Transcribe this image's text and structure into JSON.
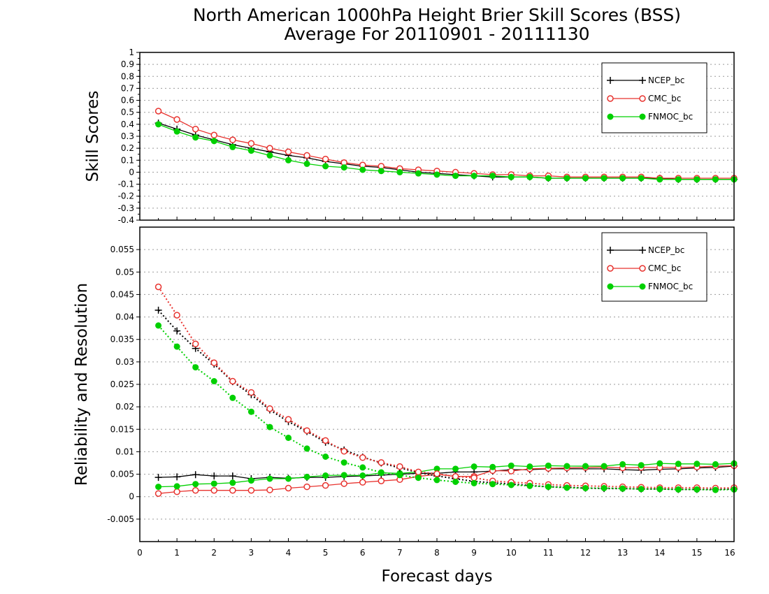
{
  "title_lines": [
    "North American 1000hPa Height Brier Skill Scores (BSS)",
    "Average For 20110901 - 20111130"
  ],
  "colors": {
    "NCEP_bc": "#000000",
    "CMC_bc": "#e8332f",
    "FNMOC_bc": "#00d000",
    "grid": "#9a9a9a",
    "axis": "#000000"
  },
  "x_axis": {
    "label": "Forecast days",
    "ticks": [
      "0",
      "1",
      "2",
      "3",
      "4",
      "5",
      "6",
      "7",
      "8",
      "9",
      "10",
      "11",
      "12",
      "13",
      "14",
      "15",
      "16"
    ]
  },
  "chart_data": [
    {
      "type": "line",
      "ylabel": "Skill Scores",
      "xlim": [
        0,
        16
      ],
      "ylim": [
        -0.4,
        1
      ],
      "grid": true,
      "legend_position": "top-right",
      "y_ticks": [
        "1",
        "0.9",
        "0.8",
        "0.7",
        "0.6",
        "0.5",
        "0.4",
        "0.3",
        "0.2",
        "0.1",
        "0",
        "-0.1",
        "-0.2",
        "-0.3",
        "-0.4"
      ],
      "x": [
        0.5,
        1,
        1.5,
        2,
        2.5,
        3,
        3.5,
        4,
        4.5,
        5,
        5.5,
        6,
        6.5,
        7,
        7.5,
        8,
        8.5,
        9,
        9.5,
        10,
        10.5,
        11,
        11.5,
        12,
        12.5,
        13,
        13.5,
        14,
        14.5,
        15,
        15.5,
        16
      ],
      "series": [
        {
          "name": "NCEP_bc",
          "marker": "plus",
          "line": "solid",
          "values": [
            0.41,
            0.36,
            0.31,
            0.27,
            0.23,
            0.2,
            0.17,
            0.14,
            0.12,
            0.09,
            0.07,
            0.05,
            0.04,
            0.02,
            0.0,
            -0.01,
            -0.02,
            -0.03,
            -0.04,
            -0.04,
            -0.04,
            -0.05,
            -0.05,
            -0.05,
            -0.05,
            -0.05,
            -0.05,
            -0.05,
            -0.06,
            -0.06,
            -0.06,
            -0.06
          ]
        },
        {
          "name": "CMC_bc",
          "marker": "open-circle",
          "line": "solid",
          "values": [
            0.51,
            0.44,
            0.36,
            0.31,
            0.27,
            0.24,
            0.2,
            0.17,
            0.14,
            0.11,
            0.08,
            0.06,
            0.05,
            0.03,
            0.02,
            0.01,
            0.0,
            -0.01,
            -0.02,
            -0.02,
            -0.03,
            -0.03,
            -0.04,
            -0.04,
            -0.04,
            -0.04,
            -0.04,
            -0.05,
            -0.05,
            -0.05,
            -0.05,
            -0.05
          ]
        },
        {
          "name": "FNMOC_bc",
          "marker": "filled-circle",
          "line": "solid",
          "values": [
            0.4,
            0.34,
            0.29,
            0.26,
            0.21,
            0.18,
            0.14,
            0.1,
            0.07,
            0.05,
            0.04,
            0.02,
            0.01,
            0.0,
            -0.01,
            -0.02,
            -0.03,
            -0.03,
            -0.03,
            -0.04,
            -0.04,
            -0.05,
            -0.05,
            -0.05,
            -0.05,
            -0.05,
            -0.05,
            -0.06,
            -0.06,
            -0.06,
            -0.06,
            -0.06
          ]
        }
      ]
    },
    {
      "type": "line",
      "ylabel": "Reliability and Resolution",
      "xlim": [
        0,
        16
      ],
      "ylim": [
        -0.01,
        0.06
      ],
      "grid": true,
      "legend_position": "top-right",
      "y_ticks": [
        "0.055",
        "0.05",
        "0.045",
        "0.04",
        "0.035",
        "0.03",
        "0.025",
        "0.02",
        "0.015",
        "0.01",
        "0.005",
        "0",
        "-0.005"
      ],
      "y_tick_values": [
        0.055,
        0.05,
        0.045,
        0.04,
        0.035,
        0.03,
        0.025,
        0.02,
        0.015,
        0.01,
        0.005,
        0,
        -0.005
      ],
      "x": [
        0.5,
        1,
        1.5,
        2,
        2.5,
        3,
        3.5,
        4,
        4.5,
        5,
        5.5,
        6,
        6.5,
        7,
        7.5,
        8,
        8.5,
        9,
        9.5,
        10,
        10.5,
        11,
        11.5,
        12,
        12.5,
        13,
        13.5,
        14,
        14.5,
        15,
        15.5,
        16
      ],
      "series": [
        {
          "name": "NCEP_bc",
          "marker": "plus",
          "line": "solid",
          "group": "reliability",
          "values": [
            0.0043,
            0.0044,
            0.0049,
            0.0046,
            0.0046,
            0.004,
            0.0043,
            0.0041,
            0.0043,
            0.0043,
            0.0045,
            0.0046,
            0.0048,
            0.005,
            0.0052,
            0.0052,
            0.0055,
            0.0055,
            0.0057,
            0.006,
            0.006,
            0.0062,
            0.0062,
            0.0062,
            0.0062,
            0.006,
            0.0059,
            0.0061,
            0.0062,
            0.0064,
            0.0065,
            0.0068
          ]
        },
        {
          "name": "CMC_bc",
          "marker": "open-circle",
          "line": "solid",
          "group": "reliability",
          "values": [
            0.0007,
            0.0011,
            0.0014,
            0.0014,
            0.0014,
            0.0014,
            0.0015,
            0.0019,
            0.0022,
            0.0025,
            0.0029,
            0.0032,
            0.0035,
            0.0038,
            0.0045,
            0.005,
            0.0045,
            0.0045,
            0.0058,
            0.0057,
            0.0062,
            0.0063,
            0.0064,
            0.0065,
            0.0066,
            0.0064,
            0.0065,
            0.0065,
            0.0065,
            0.0066,
            0.0068,
            0.0069
          ]
        },
        {
          "name": "FNMOC_bc",
          "marker": "filled-circle",
          "line": "solid",
          "group": "reliability",
          "values": [
            0.0022,
            0.0023,
            0.0028,
            0.0029,
            0.0031,
            0.0036,
            0.004,
            0.004,
            0.0044,
            0.0047,
            0.0048,
            0.0047,
            0.0053,
            0.0052,
            0.0055,
            0.0062,
            0.0062,
            0.0067,
            0.0066,
            0.0069,
            0.0067,
            0.0069,
            0.0068,
            0.0068,
            0.0068,
            0.0072,
            0.007,
            0.0074,
            0.0073,
            0.0073,
            0.0072,
            0.0074
          ]
        },
        {
          "name": "NCEP_bc",
          "marker": "plus",
          "line": "dotted",
          "group": "resolution",
          "values": [
            0.0415,
            0.0369,
            0.033,
            0.0295,
            0.0256,
            0.0227,
            0.0193,
            0.0167,
            0.0145,
            0.0121,
            0.0104,
            0.0088,
            0.0075,
            0.0064,
            0.0054,
            0.0046,
            0.004,
            0.0034,
            0.0031,
            0.0028,
            0.0025,
            0.0022,
            0.0021,
            0.0019,
            0.0018,
            0.0018,
            0.0017,
            0.0017,
            0.0016,
            0.0016,
            0.0016,
            0.0017
          ]
        },
        {
          "name": "CMC_bc",
          "marker": "open-circle",
          "line": "dotted",
          "group": "resolution",
          "values": [
            0.0467,
            0.0404,
            0.034,
            0.0298,
            0.0257,
            0.0232,
            0.0196,
            0.0172,
            0.0147,
            0.0125,
            0.0101,
            0.0087,
            0.0076,
            0.0067,
            0.0055,
            0.0051,
            0.0045,
            0.0042,
            0.0035,
            0.0032,
            0.003,
            0.0027,
            0.0025,
            0.0024,
            0.0023,
            0.0022,
            0.0021,
            0.002,
            0.002,
            0.002,
            0.0019,
            0.002
          ]
        },
        {
          "name": "FNMOC_bc",
          "marker": "filled-circle",
          "line": "dotted",
          "group": "resolution",
          "values": [
            0.0381,
            0.0334,
            0.0288,
            0.0257,
            0.022,
            0.0189,
            0.0155,
            0.0131,
            0.0107,
            0.0089,
            0.0076,
            0.0065,
            0.0054,
            0.0048,
            0.0042,
            0.0037,
            0.0033,
            0.003,
            0.0028,
            0.0026,
            0.0024,
            0.0022,
            0.002,
            0.0019,
            0.0019,
            0.0018,
            0.0017,
            0.0017,
            0.0016,
            0.0016,
            0.0015,
            0.0016
          ]
        }
      ]
    }
  ]
}
